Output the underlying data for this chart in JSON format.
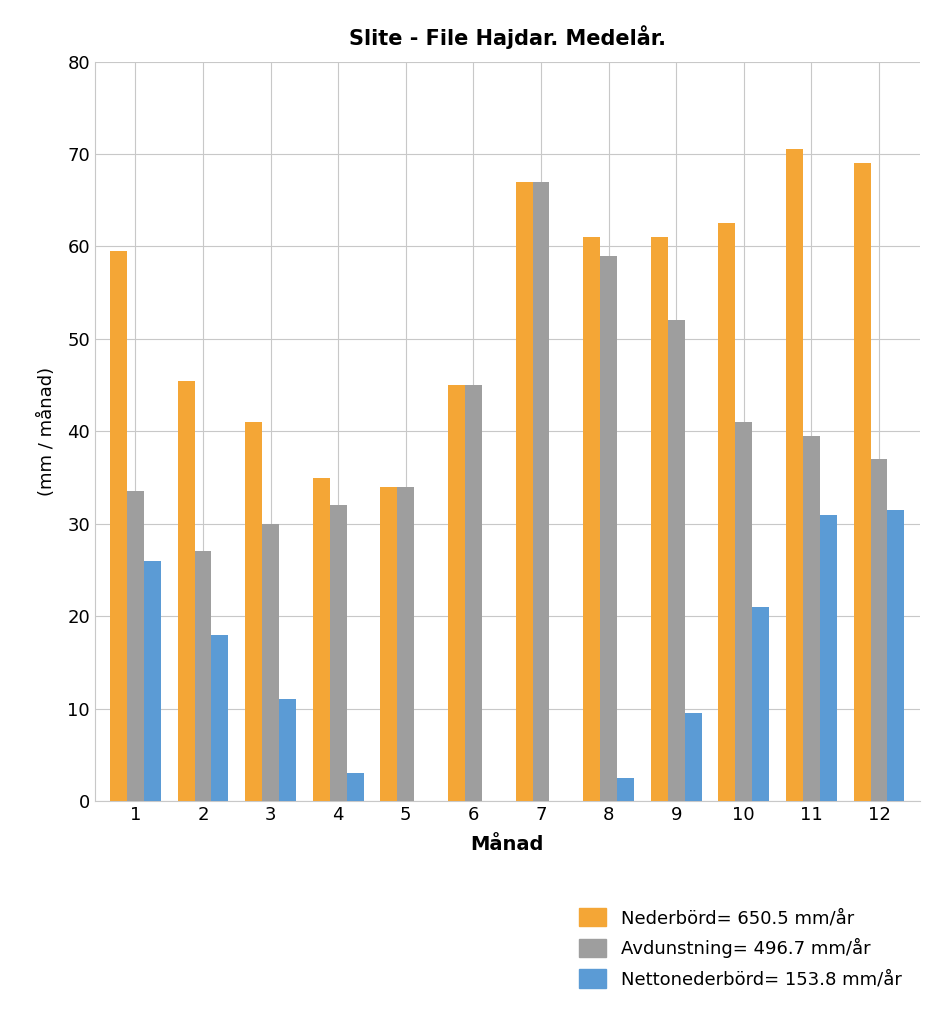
{
  "title": "Slite - File Hajdar. Medelår.",
  "xlabel": "Månad",
  "ylabel": "(mm / månad)",
  "months": [
    1,
    2,
    3,
    4,
    5,
    6,
    7,
    8,
    9,
    10,
    11,
    12
  ],
  "nederbord": [
    59.5,
    45.5,
    41.0,
    35.0,
    34.0,
    45.0,
    67.0,
    61.0,
    61.0,
    62.5,
    70.5,
    69.0
  ],
  "avdunstning": [
    33.5,
    27.0,
    30.0,
    32.0,
    34.0,
    45.0,
    67.0,
    59.0,
    52.0,
    41.0,
    39.5,
    37.0
  ],
  "nettonederbord": [
    26.0,
    18.0,
    11.0,
    3.0,
    0.0,
    0.0,
    0.0,
    2.5,
    9.5,
    21.0,
    31.0,
    31.5
  ],
  "color_nederbord": "#F4A636",
  "color_avdunstning": "#9E9E9E",
  "color_nettonederbord": "#5B9BD5",
  "legend_nederbord": "Nederbörd= 650.5 mm/år",
  "legend_avdunstning": "Avdunstning= 496.7 mm/år",
  "legend_nettonederbord": "Nettonederbörd= 153.8 mm/år",
  "ylim": [
    0,
    80
  ],
  "yticks": [
    0,
    10,
    20,
    30,
    40,
    50,
    60,
    70,
    80
  ],
  "background_color": "#FFFFFF",
  "grid_color": "#C8C8C8"
}
